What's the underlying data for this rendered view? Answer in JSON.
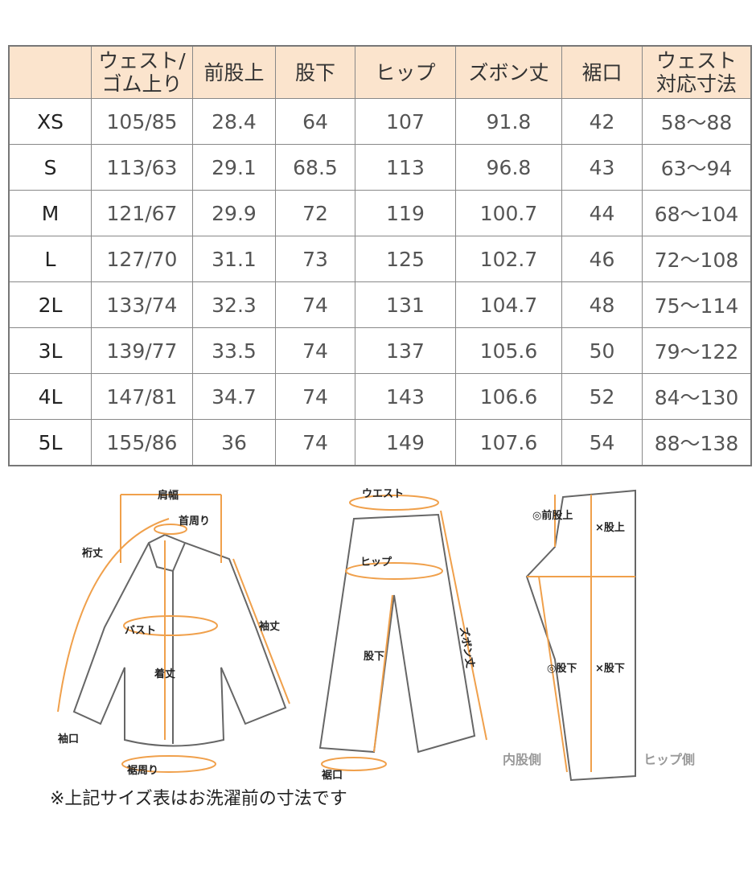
{
  "table": {
    "headers": [
      "",
      "ウェスト/\nゴム上り",
      "前股上",
      "股下",
      "ヒップ",
      "ズボン丈",
      "裾口",
      "ウェスト\n対応寸法"
    ],
    "rows": [
      [
        "XS",
        "105/85",
        "28.4",
        "64",
        "107",
        "91.8",
        "42",
        "58～88"
      ],
      [
        "S",
        "113/63",
        "29.1",
        "68.5",
        "113",
        "96.8",
        "43",
        "63～94"
      ],
      [
        "M",
        "121/67",
        "29.9",
        "72",
        "119",
        "100.7",
        "44",
        "68～104"
      ],
      [
        "L",
        "127/70",
        "31.1",
        "73",
        "125",
        "102.7",
        "46",
        "72～108"
      ],
      [
        "2L",
        "133/74",
        "32.3",
        "74",
        "131",
        "104.7",
        "48",
        "75～114"
      ],
      [
        "3L",
        "139/77",
        "33.5",
        "74",
        "137",
        "105.6",
        "50",
        "79～122"
      ],
      [
        "4L",
        "147/81",
        "34.7",
        "74",
        "143",
        "106.6",
        "52",
        "84～130"
      ],
      [
        "5L",
        "155/86",
        "36",
        "74",
        "149",
        "107.6",
        "54",
        "88～138"
      ]
    ]
  },
  "diagram": {
    "shirt": {
      "shoulder": "肩幅",
      "neck": "首周り",
      "sleeve_full": "裄丈",
      "bust": "バスト",
      "sleeve": "袖丈",
      "length": "着丈",
      "cuff": "袖口",
      "hem": "裾周り"
    },
    "pants": {
      "waist": "ウエスト",
      "hip": "ヒップ",
      "inseam": "股下",
      "length": "ズボン丈",
      "hem": "裾口"
    },
    "side": {
      "front_rise": "◎前股上",
      "rise": "×股上",
      "inseam_front": "◎股下",
      "inseam_back": "×股下",
      "inner": "内股側",
      "hip_side": "ヒップ側"
    },
    "accent_color": "#f0a04b"
  },
  "note": "※上記サイズ表はお洗濯前の寸法です"
}
